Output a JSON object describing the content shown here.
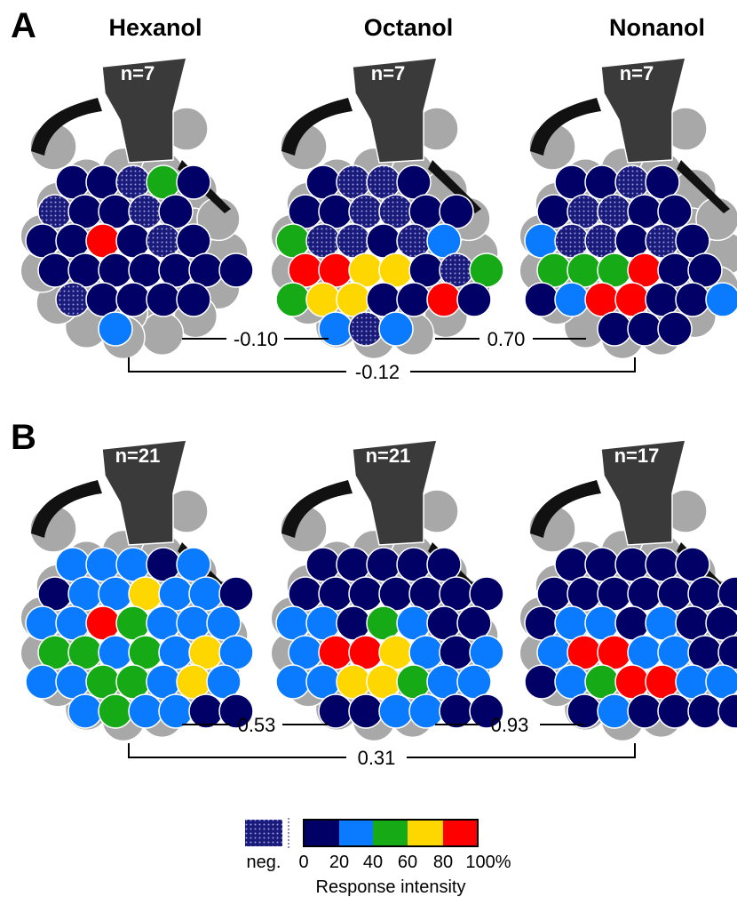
{
  "panels": [
    {
      "label": "A",
      "odors": [
        "Hexanol",
        "Octanol",
        "Nonanol"
      ],
      "n": [
        "n=7",
        "n=7",
        "n=7"
      ],
      "correlations": [
        "-0.10",
        "0.70",
        "-0.12"
      ]
    },
    {
      "label": "B",
      "n": [
        "n=21",
        "n=21",
        "n=17"
      ],
      "correlations": [
        "0.53",
        "0.93",
        "0.31"
      ]
    }
  ],
  "legend": {
    "neg": "neg.",
    "scale_labels": [
      "0",
      "20",
      "40",
      "60",
      "80",
      "100%"
    ],
    "title": "Response intensity"
  }
}
